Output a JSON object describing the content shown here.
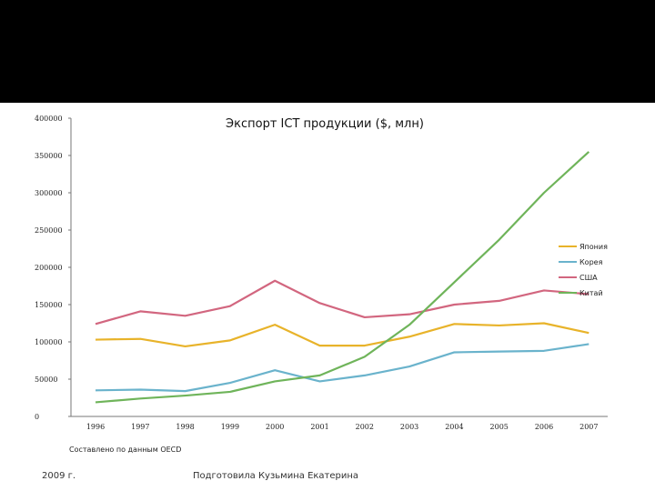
{
  "header": {
    "band_color": "#000000"
  },
  "chart_data": {
    "type": "line",
    "title": "Экспорт ICT продукции ($, млн)",
    "categories": [
      "1996",
      "1997",
      "1998",
      "1999",
      "2000",
      "2001",
      "2002",
      "2003",
      "2004",
      "2005",
      "2006",
      "2007"
    ],
    "ylim": [
      0,
      400000
    ],
    "yticks": [
      "400000",
      "350000",
      "300000",
      "250000",
      "200000",
      "150000",
      "100000",
      "50000",
      "0"
    ],
    "ytick_values": [
      400000,
      350000,
      300000,
      250000,
      200000,
      150000,
      100000,
      50000,
      0
    ],
    "series": [
      {
        "name": "Япония",
        "color": "#E8B32A",
        "values": [
          103000,
          104000,
          94000,
          102000,
          123000,
          95000,
          95000,
          107000,
          124000,
          122000,
          125000,
          112000
        ]
      },
      {
        "name": "Корея",
        "color": "#6AB3CC",
        "values": [
          35000,
          36000,
          34000,
          45000,
          62000,
          47000,
          55000,
          67000,
          86000,
          87000,
          88000,
          97000
        ]
      },
      {
        "name": "США",
        "color": "#D2667F",
        "values": [
          124000,
          141000,
          135000,
          148000,
          182000,
          152000,
          133000,
          137000,
          150000,
          155000,
          169000,
          164000
        ]
      },
      {
        "name": "Китай",
        "color": "#6FB45A",
        "values": [
          19000,
          24000,
          28000,
          33000,
          47000,
          55000,
          80000,
          123000,
          180000,
          237000,
          300000,
          355000
        ]
      }
    ],
    "source": "Составлено по данным OECD",
    "legend_position": "right"
  },
  "footer": {
    "left": "2009 г.",
    "right": "Подготовила Кузьмина Екатерина"
  }
}
